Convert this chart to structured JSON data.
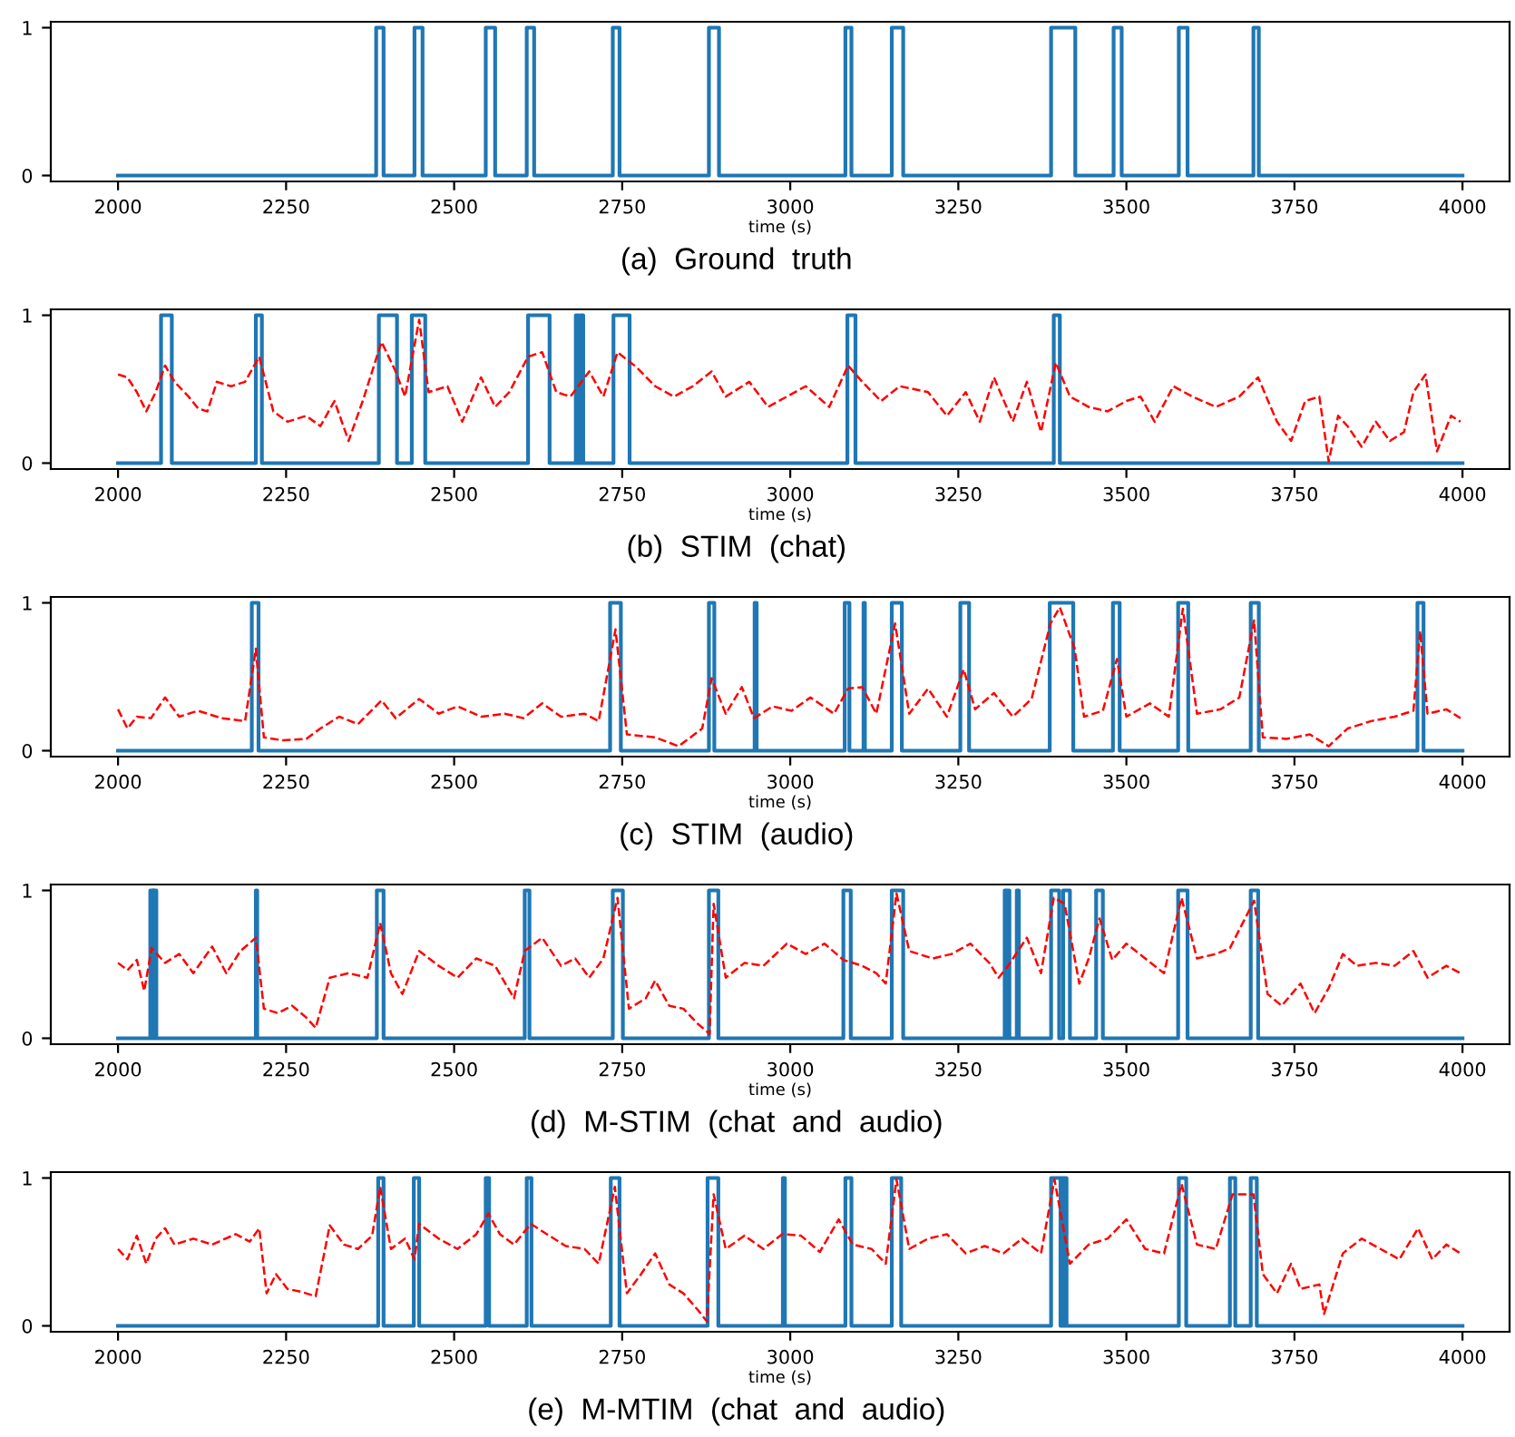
{
  "chart_data": [
    {
      "type": "line",
      "title": "(a)  Ground  truth",
      "xlabel": "time (s)",
      "xlim": [
        1900,
        4070
      ],
      "ylim": [
        -0.04,
        1.04
      ],
      "xticks": [
        2000,
        2250,
        2500,
        2750,
        3000,
        3250,
        3500,
        3750,
        4000
      ],
      "yticks": [
        0,
        1
      ],
      "grid": false,
      "marker": "none",
      "series": [
        {
          "type": "step",
          "color": "#1f77b4",
          "line_style": "solid",
          "x": [
            2000,
            2384,
            2395,
            2441,
            2453,
            2547,
            2561,
            2608,
            2619,
            2736,
            2746,
            2879,
            2894,
            3082,
            3091,
            3151,
            3168,
            3388,
            3424,
            3481,
            3493,
            3578,
            3591,
            3689,
            3697,
            4000
          ],
          "values": [
            0,
            1,
            0,
            1,
            0,
            1,
            0,
            1,
            0,
            1,
            0,
            1,
            0,
            1,
            0,
            1,
            0,
            1,
            0,
            1,
            0,
            1,
            0,
            1,
            0,
            0
          ]
        }
      ]
    },
    {
      "type": "line",
      "title": "(b)  STIM  (chat)",
      "xlabel": "time (s)",
      "xlim": [
        1900,
        4070
      ],
      "ylim": [
        -0.04,
        1.04
      ],
      "xticks": [
        2000,
        2250,
        2500,
        2750,
        3000,
        3250,
        3500,
        3750,
        4000
      ],
      "yticks": [
        0,
        1
      ],
      "grid": false,
      "marker": "none",
      "series": [
        {
          "type": "step",
          "color": "#1f77b4",
          "line_style": "solid",
          "x": [
            2000,
            2064,
            2080,
            2205,
            2214,
            2388,
            2415,
            2437,
            2457,
            2610,
            2642,
            2681,
            2685,
            2688,
            2692,
            2737,
            2761,
            3085,
            3097,
            3392,
            3401,
            4000
          ],
          "values": [
            0,
            1,
            0,
            1,
            0,
            1,
            0,
            1,
            0,
            1,
            0,
            1,
            0,
            1,
            0,
            1,
            0,
            1,
            0,
            1,
            0,
            0
          ]
        },
        {
          "type": "line",
          "color": "#ff0000",
          "line_style": "dashed",
          "x": [
            2000,
            2014,
            2028,
            2042,
            2056,
            2070,
            2084,
            2105,
            2119,
            2133,
            2147,
            2168,
            2189,
            2210,
            2231,
            2252,
            2280,
            2301,
            2322,
            2343,
            2364,
            2392,
            2413,
            2427,
            2448,
            2462,
            2490,
            2512,
            2540,
            2561,
            2582,
            2610,
            2631,
            2652,
            2673,
            2701,
            2722,
            2743,
            2771,
            2799,
            2827,
            2855,
            2883,
            2904,
            2939,
            2967,
            2995,
            3023,
            3058,
            3086,
            3107,
            3135,
            3163,
            3205,
            3233,
            3261,
            3282,
            3303,
            3331,
            3352,
            3373,
            3395,
            3416,
            3444,
            3472,
            3500,
            3521,
            3542,
            3570,
            3598,
            3633,
            3668,
            3696,
            3724,
            3745,
            3766,
            3787,
            3801,
            3815,
            3829,
            3850,
            3871,
            3892,
            3913,
            3927,
            3945,
            3962,
            3983,
            3997
          ],
          "values": [
            0.6,
            0.58,
            0.48,
            0.35,
            0.48,
            0.66,
            0.55,
            0.45,
            0.37,
            0.35,
            0.55,
            0.52,
            0.55,
            0.72,
            0.35,
            0.28,
            0.32,
            0.25,
            0.42,
            0.15,
            0.42,
            0.82,
            0.62,
            0.45,
            0.97,
            0.48,
            0.52,
            0.28,
            0.58,
            0.38,
            0.48,
            0.72,
            0.75,
            0.48,
            0.45,
            0.62,
            0.45,
            0.75,
            0.65,
            0.52,
            0.45,
            0.52,
            0.62,
            0.45,
            0.55,
            0.38,
            0.45,
            0.52,
            0.38,
            0.66,
            0.55,
            0.42,
            0.52,
            0.48,
            0.32,
            0.48,
            0.28,
            0.58,
            0.28,
            0.55,
            0.21,
            0.68,
            0.45,
            0.38,
            0.35,
            0.42,
            0.45,
            0.28,
            0.52,
            0.45,
            0.38,
            0.45,
            0.58,
            0.28,
            0.15,
            0.42,
            0.45,
            0.01,
            0.32,
            0.25,
            0.11,
            0.28,
            0.15,
            0.21,
            0.48,
            0.6,
            0.08,
            0.32,
            0.28
          ]
        }
      ]
    },
    {
      "type": "line",
      "title": "(c)  STIM  (audio)",
      "xlabel": "time (s)",
      "xlim": [
        1900,
        4070
      ],
      "ylim": [
        -0.04,
        1.04
      ],
      "xticks": [
        2000,
        2250,
        2500,
        2750,
        3000,
        3250,
        3500,
        3750,
        4000
      ],
      "yticks": [
        0,
        1
      ],
      "grid": false,
      "marker": "none",
      "series": [
        {
          "type": "step",
          "color": "#1f77b4",
          "line_style": "solid",
          "x": [
            2000,
            2199,
            2209,
            2732,
            2748,
            2879,
            2887,
            2947,
            2950,
            3081,
            3088,
            3109,
            3111,
            3151,
            3166,
            3253,
            3266,
            3386,
            3421,
            3480,
            3490,
            3577,
            3592,
            3685,
            3697,
            3933,
            3942,
            4000
          ],
          "values": [
            0,
            1,
            0,
            1,
            0,
            1,
            0,
            1,
            0,
            1,
            0,
            1,
            0,
            1,
            0,
            1,
            0,
            1,
            0,
            1,
            0,
            1,
            0,
            1,
            0,
            1,
            0,
            0
          ]
        },
        {
          "type": "line",
          "color": "#ff0000",
          "line_style": "dashed",
          "x": [
            2000,
            2014,
            2028,
            2049,
            2070,
            2091,
            2119,
            2154,
            2189,
            2205,
            2217,
            2245,
            2280,
            2301,
            2329,
            2357,
            2392,
            2413,
            2448,
            2477,
            2505,
            2540,
            2575,
            2603,
            2631,
            2659,
            2694,
            2715,
            2740,
            2757,
            2799,
            2834,
            2869,
            2883,
            2904,
            2928,
            2946,
            2974,
            3002,
            3030,
            3065,
            3086,
            3107,
            3128,
            3156,
            3177,
            3205,
            3233,
            3258,
            3275,
            3303,
            3331,
            3359,
            3387,
            3401,
            3423,
            3437,
            3465,
            3486,
            3500,
            3535,
            3563,
            3584,
            3605,
            3640,
            3668,
            3690,
            3703,
            3738,
            3773,
            3801,
            3829,
            3864,
            3899,
            3927,
            3937,
            3948,
            3976,
            3997
          ],
          "values": [
            0.28,
            0.15,
            0.23,
            0.22,
            0.36,
            0.23,
            0.27,
            0.22,
            0.2,
            0.69,
            0.09,
            0.07,
            0.08,
            0.15,
            0.23,
            0.18,
            0.34,
            0.22,
            0.35,
            0.25,
            0.3,
            0.23,
            0.25,
            0.22,
            0.32,
            0.23,
            0.25,
            0.2,
            0.82,
            0.11,
            0.09,
            0.03,
            0.15,
            0.49,
            0.25,
            0.43,
            0.22,
            0.3,
            0.27,
            0.36,
            0.25,
            0.42,
            0.43,
            0.25,
            0.86,
            0.25,
            0.42,
            0.23,
            0.55,
            0.28,
            0.39,
            0.23,
            0.35,
            0.86,
            0.97,
            0.69,
            0.23,
            0.27,
            0.62,
            0.23,
            0.32,
            0.23,
            0.96,
            0.25,
            0.28,
            0.36,
            0.88,
            0.09,
            0.08,
            0.11,
            0.03,
            0.15,
            0.2,
            0.23,
            0.27,
            0.81,
            0.25,
            0.28,
            0.22
          ]
        }
      ]
    },
    {
      "type": "line",
      "title": "(d)  M-STIM  (chat  and  audio)",
      "xlabel": "time (s)",
      "xlim": [
        1900,
        4070
      ],
      "ylim": [
        -0.04,
        1.04
      ],
      "xticks": [
        2000,
        2250,
        2500,
        2750,
        3000,
        3250,
        3500,
        3750,
        4000
      ],
      "yticks": [
        0,
        1
      ],
      "grid": false,
      "marker": "none",
      "series": [
        {
          "type": "step",
          "color": "#1f77b4",
          "line_style": "solid",
          "x": [
            2000,
            2048,
            2052,
            2053,
            2057,
            2205,
            2207,
            2385,
            2395,
            2605,
            2612,
            2736,
            2751,
            2879,
            2893,
            3079,
            3090,
            3151,
            3168,
            3319,
            3321,
            3323,
            3326,
            3337,
            3340,
            3388,
            3400,
            3406,
            3416,
            3455,
            3465,
            3577,
            3591,
            3685,
            3696,
            4000
          ],
          "values": [
            0,
            1,
            0,
            1,
            0,
            1,
            0,
            1,
            0,
            1,
            0,
            1,
            0,
            1,
            0,
            1,
            0,
            1,
            0,
            1,
            0,
            1,
            0,
            1,
            0,
            1,
            0,
            1,
            0,
            1,
            0,
            1,
            0,
            1,
            0,
            0
          ]
        },
        {
          "type": "line",
          "color": "#ff0000",
          "line_style": "dashed",
          "x": [
            2000,
            2014,
            2028,
            2039,
            2050,
            2070,
            2091,
            2112,
            2140,
            2161,
            2182,
            2205,
            2217,
            2238,
            2259,
            2280,
            2294,
            2315,
            2343,
            2371,
            2390,
            2406,
            2423,
            2448,
            2477,
            2505,
            2533,
            2561,
            2589,
            2605,
            2631,
            2659,
            2680,
            2701,
            2722,
            2743,
            2760,
            2785,
            2799,
            2820,
            2841,
            2862,
            2880,
            2886,
            2904,
            2932,
            2960,
            2995,
            3023,
            3051,
            3079,
            3107,
            3128,
            3142,
            3158,
            3177,
            3212,
            3240,
            3268,
            3296,
            3310,
            3324,
            3352,
            3373,
            3392,
            3408,
            3430,
            3444,
            3460,
            3479,
            3500,
            3528,
            3556,
            3582,
            3605,
            3633,
            3654,
            3690,
            3710,
            3731,
            3759,
            3780,
            3801,
            3822,
            3843,
            3871,
            3899,
            3927,
            3948,
            3976,
            3997
          ],
          "values": [
            0.51,
            0.46,
            0.53,
            0.32,
            0.61,
            0.51,
            0.57,
            0.44,
            0.62,
            0.44,
            0.59,
            0.68,
            0.2,
            0.17,
            0.22,
            0.14,
            0.07,
            0.41,
            0.44,
            0.41,
            0.78,
            0.44,
            0.3,
            0.59,
            0.49,
            0.41,
            0.54,
            0.49,
            0.27,
            0.59,
            0.68,
            0.49,
            0.54,
            0.41,
            0.54,
            0.95,
            0.2,
            0.27,
            0.39,
            0.22,
            0.2,
            0.1,
            0.03,
            0.91,
            0.41,
            0.51,
            0.49,
            0.64,
            0.57,
            0.64,
            0.53,
            0.49,
            0.44,
            0.37,
            0.98,
            0.59,
            0.54,
            0.57,
            0.64,
            0.51,
            0.41,
            0.49,
            0.68,
            0.44,
            0.95,
            0.91,
            0.37,
            0.54,
            0.81,
            0.53,
            0.64,
            0.54,
            0.44,
            0.95,
            0.54,
            0.57,
            0.61,
            0.93,
            0.3,
            0.22,
            0.37,
            0.17,
            0.34,
            0.57,
            0.49,
            0.51,
            0.49,
            0.59,
            0.41,
            0.49,
            0.44
          ]
        }
      ]
    },
    {
      "type": "line",
      "title": "(e)  M-MTIM  (chat  and  audio)",
      "xlabel": "time (s)",
      "xlim": [
        1900,
        4070
      ],
      "ylim": [
        -0.04,
        1.04
      ],
      "xticks": [
        2000,
        2250,
        2500,
        2750,
        3000,
        3250,
        3500,
        3750,
        4000
      ],
      "yticks": [
        0,
        1
      ],
      "grid": false,
      "marker": "none",
      "series": [
        {
          "type": "step",
          "color": "#1f77b4",
          "line_style": "solid",
          "x": [
            2000,
            2387,
            2395,
            2440,
            2448,
            2547,
            2552,
            2608,
            2615,
            2733,
            2746,
            2877,
            2893,
            2989,
            2992,
            3082,
            3091,
            3151,
            3165,
            3388,
            3402,
            3404,
            3407,
            3409,
            3411,
            3578,
            3589,
            3654,
            3662,
            3685,
            3694,
            4000
          ],
          "values": [
            0,
            1,
            0,
            1,
            0,
            1,
            0,
            1,
            0,
            1,
            0,
            1,
            0,
            1,
            0,
            1,
            0,
            1,
            0,
            1,
            0,
            1,
            0,
            1,
            0,
            1,
            0,
            1,
            0,
            1,
            0,
            0
          ]
        },
        {
          "type": "line",
          "color": "#ff0000",
          "line_style": "dashed",
          "x": [
            2000,
            2014,
            2028,
            2042,
            2056,
            2070,
            2084,
            2112,
            2140,
            2175,
            2196,
            2210,
            2221,
            2235,
            2252,
            2273,
            2294,
            2315,
            2336,
            2357,
            2378,
            2390,
            2406,
            2427,
            2441,
            2448,
            2477,
            2505,
            2533,
            2551,
            2568,
            2589,
            2614,
            2638,
            2666,
            2694,
            2715,
            2739,
            2757,
            2778,
            2799,
            2820,
            2841,
            2862,
            2876,
            2886,
            2904,
            2932,
            2960,
            2988,
            3016,
            3044,
            3072,
            3093,
            3121,
            3142,
            3158,
            3177,
            3205,
            3233,
            3261,
            3289,
            3317,
            3345,
            3373,
            3393,
            3416,
            3444,
            3472,
            3500,
            3528,
            3556,
            3582,
            3605,
            3633,
            3658,
            3689,
            3703,
            3724,
            3745,
            3759,
            3787,
            3794,
            3822,
            3850,
            3878,
            3906,
            3934,
            3955,
            3976,
            3997
          ],
          "values": [
            0.52,
            0.45,
            0.61,
            0.42,
            0.59,
            0.66,
            0.55,
            0.59,
            0.55,
            0.62,
            0.57,
            0.66,
            0.22,
            0.35,
            0.25,
            0.23,
            0.2,
            0.68,
            0.55,
            0.52,
            0.61,
            0.94,
            0.52,
            0.59,
            0.45,
            0.69,
            0.59,
            0.52,
            0.62,
            0.76,
            0.62,
            0.55,
            0.69,
            0.62,
            0.54,
            0.52,
            0.42,
            0.94,
            0.22,
            0.35,
            0.49,
            0.28,
            0.22,
            0.11,
            0.03,
            0.89,
            0.52,
            0.61,
            0.52,
            0.62,
            0.61,
            0.5,
            0.72,
            0.55,
            0.52,
            0.42,
            0.99,
            0.52,
            0.59,
            0.62,
            0.49,
            0.54,
            0.49,
            0.59,
            0.49,
            0.99,
            0.42,
            0.55,
            0.59,
            0.72,
            0.52,
            0.49,
            0.96,
            0.55,
            0.52,
            0.89,
            0.89,
            0.35,
            0.22,
            0.42,
            0.25,
            0.28,
            0.08,
            0.49,
            0.59,
            0.52,
            0.45,
            0.66,
            0.45,
            0.55,
            0.49
          ]
        }
      ]
    }
  ]
}
